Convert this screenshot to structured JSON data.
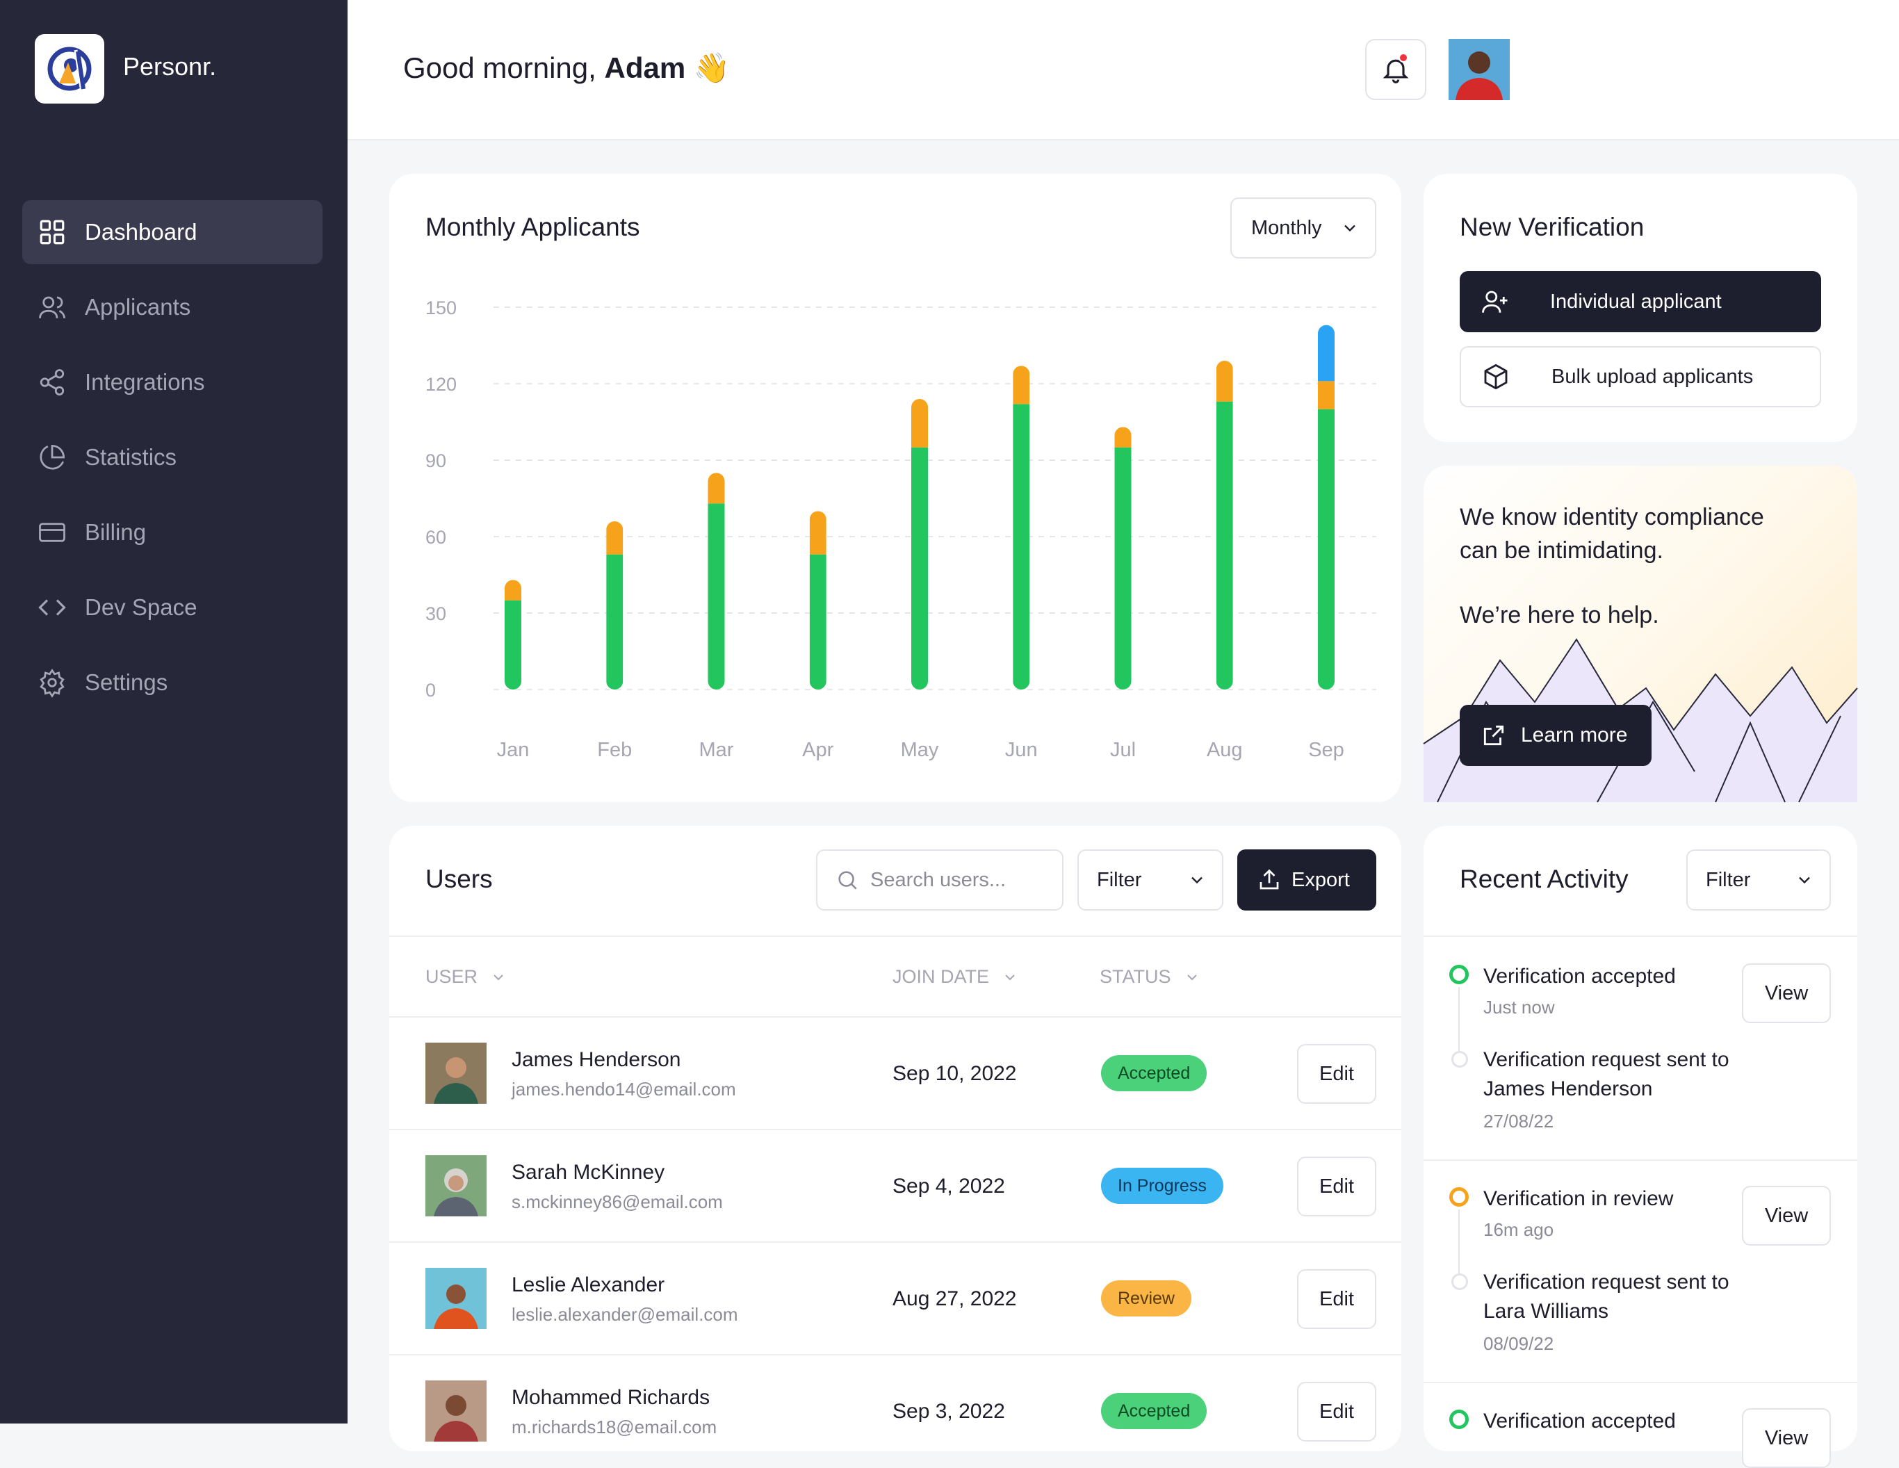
{
  "brand": {
    "name": "Personr."
  },
  "nav": [
    {
      "label": "Dashboard",
      "icon": "grid-icon",
      "active": true
    },
    {
      "label": "Applicants",
      "icon": "users-icon"
    },
    {
      "label": "Integrations",
      "icon": "share-icon"
    },
    {
      "label": "Statistics",
      "icon": "pie-chart-icon"
    },
    {
      "label": "Billing",
      "icon": "credit-card-icon"
    },
    {
      "label": "Dev Space",
      "icon": "code-icon"
    },
    {
      "label": "Settings",
      "icon": "gear-icon"
    }
  ],
  "header": {
    "greeting": "Good morning,",
    "user": "Adam",
    "emoji": "👋"
  },
  "applicants_card": {
    "title": "Monthly Applicants",
    "period": "Monthly"
  },
  "chart_data": {
    "type": "bar",
    "stacked": true,
    "title": "Monthly Applicants",
    "categories": [
      "Jan",
      "Feb",
      "Mar",
      "Apr",
      "May",
      "Jun",
      "Jul",
      "Aug",
      "Sep"
    ],
    "series": [
      {
        "values": [
          35,
          53,
          73,
          53,
          95,
          112,
          95,
          113,
          110
        ],
        "color": "#22c55e"
      },
      {
        "values": [
          8,
          13,
          12,
          17,
          19,
          15,
          8,
          16,
          11
        ],
        "color": "#f7a21b"
      },
      {
        "values": [
          0,
          0,
          0,
          0,
          0,
          0,
          0,
          0,
          22
        ],
        "color": "#2aa3f5"
      }
    ],
    "yticks": [
      "150",
      "120",
      "90",
      "60",
      "30",
      "0"
    ],
    "ylim": [
      0,
      150
    ],
    "grid": true
  },
  "verification": {
    "title": "New Verification",
    "individual": "Individual applicant",
    "bulk": "Bulk upload applicants"
  },
  "help": {
    "line1": "We know identity compliance can be intimidating.",
    "line2": "We’re here to help.",
    "button": "Learn more"
  },
  "users": {
    "title": "Users",
    "search_placeholder": "Search users...",
    "filter": "Filter",
    "export": "Export",
    "columns": [
      "USER",
      "JOIN DATE",
      "STATUS"
    ],
    "edit_label": "Edit",
    "rows": [
      {
        "name": "James Henderson",
        "email": "james.hendo14@email.com",
        "date": "Sep 10, 2022",
        "status": "Accepted",
        "badge_bg": "#4ad17a",
        "badge_fg": "#0c4a24"
      },
      {
        "name": "Sarah McKinney",
        "email": "s.mckinney86@email.com",
        "date": "Sep 4, 2022",
        "status": "In Progress",
        "badge_bg": "#3bb4f2",
        "badge_fg": "#0a3858"
      },
      {
        "name": "Leslie Alexander",
        "email": "leslie.alexander@email.com",
        "date": "Aug 27, 2022",
        "status": "Review",
        "badge_bg": "#fbb545",
        "badge_fg": "#5a3a05"
      },
      {
        "name": "Mohammed Richards",
        "email": "m.richards18@email.com",
        "date": "Sep 3, 2022",
        "status": "Accepted",
        "badge_bg": "#4ad17a",
        "badge_fg": "#0c4a24"
      }
    ]
  },
  "activity": {
    "title": "Recent Activity",
    "filter": "Filter",
    "view_label": "View",
    "items": [
      {
        "title": "Verification accepted",
        "time": "Just now",
        "sub_title": "Verification request sent to James Henderson",
        "sub_time": "27/08/22",
        "color": "#22c55e"
      },
      {
        "title": "Verification in review",
        "time": "16m ago",
        "sub_title": "Verification request sent to Lara Williams",
        "sub_time": "08/09/22",
        "color": "#f7a21b"
      },
      {
        "title": "Verification accepted",
        "color": "#22c55e"
      }
    ]
  }
}
